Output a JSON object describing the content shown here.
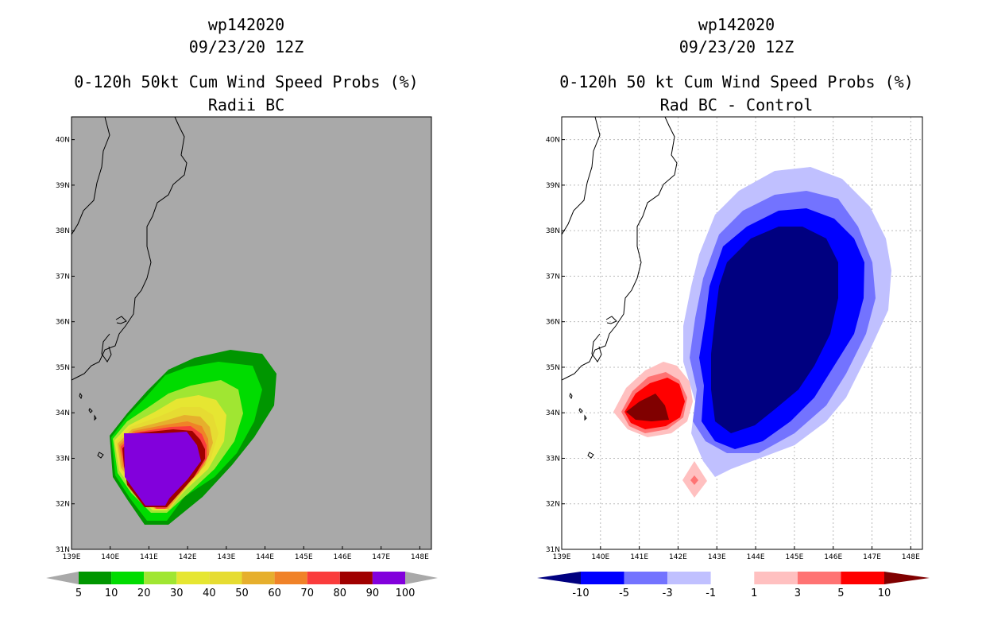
{
  "left": {
    "title_line1": "wp142020",
    "title_line2": "09/23/20 12Z",
    "title_line3": "0-120h 50kt Cum Wind Speed Probs (%)",
    "title_line4": "Radii BC",
    "background": "#a9a9a9",
    "colorbar": {
      "colors": [
        "#009600",
        "#00dc00",
        "#a0e632",
        "#e6e632",
        "#e6dc32",
        "#e6af2d",
        "#f08228",
        "#fa3c3c",
        "#a00000",
        "#8200dc"
      ],
      "labels": [
        "5",
        "10",
        "20",
        "30",
        "40",
        "50",
        "60",
        "70",
        "80",
        "90",
        "100"
      ]
    }
  },
  "right": {
    "title_line1": "wp142020",
    "title_line2": "09/23/20 12Z",
    "title_line3": "0-120h 50 kt Cum Wind Speed Probs (%)",
    "title_line4": "Rad BC - Control",
    "background": "#ffffff",
    "colorbar": {
      "colors": [
        "#000080",
        "#0000ff",
        "#7373ff",
        "#c0c0ff",
        "#ffffff",
        "#ffc0c0",
        "#ff7373",
        "#ff0000",
        "#800000"
      ],
      "labels": [
        "-10",
        "-5",
        "-3",
        "-1",
        "1",
        "3",
        "5",
        "10"
      ]
    }
  },
  "axes": {
    "x_ticks": [
      "139E",
      "140E",
      "141E",
      "142E",
      "143E",
      "144E",
      "145E",
      "146E",
      "147E",
      "148E"
    ],
    "y_ticks": [
      "31N",
      "32N",
      "33N",
      "34N",
      "35N",
      "36N",
      "37N",
      "38N",
      "39N",
      "40N"
    ]
  }
}
